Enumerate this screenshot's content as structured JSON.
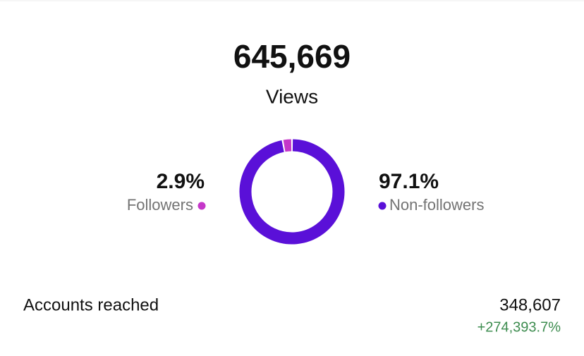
{
  "header": {
    "value": "645,669",
    "label": "Views"
  },
  "chart_data": {
    "type": "pie",
    "categories": [
      "Followers",
      "Non-followers"
    ],
    "values": [
      2.9,
      97.1
    ],
    "value_labels": [
      "2.9%",
      "97.1%"
    ],
    "colors": [
      "#c537c9",
      "#5a10d8"
    ]
  },
  "metrics": [
    {
      "label": "Accounts reached",
      "value": "348,607",
      "change": "+274,393.7%"
    }
  ]
}
